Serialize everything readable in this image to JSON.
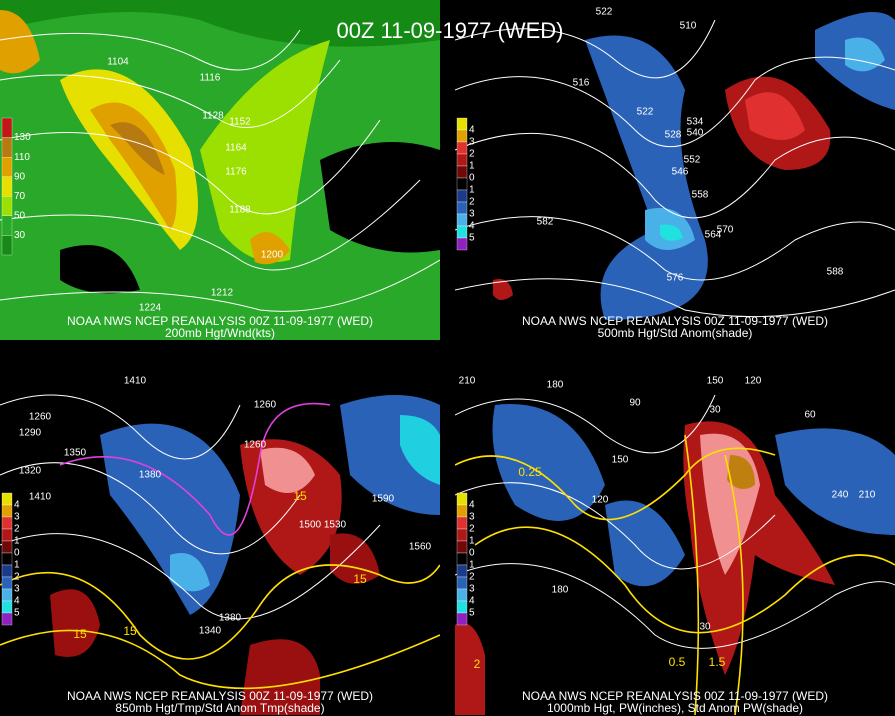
{
  "title": "00Z 11-09-1977 (WED)",
  "panels": [
    {
      "caption": "NOAA NWS NCEP REANALYSIS 00Z 11-09-1977 (WED)",
      "subcaption": "200mb Hgt/Wnd(kts)",
      "colorbar": [
        "130",
        "110",
        "90",
        "70",
        "50",
        "30"
      ],
      "contour_labels": [
        "1104",
        "1116",
        "1128",
        "1152",
        "1164",
        "1176",
        "1188",
        "1200",
        "1212",
        "1224"
      ]
    },
    {
      "caption": "NOAA NWS NCEP REANALYSIS 00Z 11-09-1977 (WED)",
      "subcaption": "500mb Hgt/Std Anom(shade)",
      "colorbar": [
        "4",
        "3",
        "2",
        "1",
        "0",
        "1",
        "2",
        "3",
        "4",
        "5"
      ],
      "contour_labels": [
        "522",
        "510",
        "516",
        "522",
        "528",
        "534",
        "540",
        "546",
        "552",
        "558",
        "564",
        "570",
        "576",
        "582",
        "588"
      ]
    },
    {
      "caption": "NOAA NWS NCEP REANALYSIS 00Z 11-09-1977 (WED)",
      "subcaption": "850mb Hgt/Tmp/Std Anom Tmp(shade)",
      "colorbar": [
        "4",
        "3",
        "2",
        "1",
        "0",
        "1",
        "2",
        "3",
        "4",
        "5"
      ],
      "contour_labels": [
        "1410",
        "1260",
        "1290",
        "1320",
        "1350",
        "1380",
        "1410",
        "1260",
        "1260",
        "1500",
        "1530",
        "1560",
        "1590",
        "15",
        "15",
        "15",
        "15",
        "1380",
        "1340"
      ]
    },
    {
      "caption": "NOAA NWS NCEP REANALYSIS 00Z 11-09-1977 (WED)",
      "subcaption": "1000mb Hgt, PW(inches), Std Anom PW(shade)",
      "colorbar": [
        "4",
        "3",
        "2",
        "1",
        "0",
        "1",
        "2",
        "3",
        "4",
        "5"
      ],
      "contour_labels": [
        "210",
        "180",
        "150",
        "120",
        "90",
        "60",
        "30",
        "0.25",
        "0.5",
        "1.5",
        "2",
        "240",
        "210",
        "150",
        "120",
        "30",
        "180"
      ]
    }
  ]
}
